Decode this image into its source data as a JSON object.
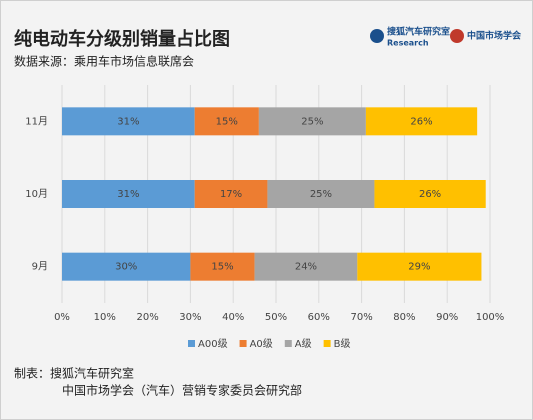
{
  "chart_data": {
    "type": "bar",
    "orientation": "horizontal",
    "stacked": true,
    "title": "纯电动车分级别销量占比图",
    "subtitle": "数据来源：乘用车市场信息联席会",
    "logos": [
      "搜狐汽车研究室",
      "Research",
      "中国市场学会"
    ],
    "footer": [
      "制表：搜狐汽车研究室",
      "中国市场学会（汽车）营销专家委员会研究部"
    ],
    "categories": [
      "11月",
      "10月",
      "9月"
    ],
    "series": [
      {
        "name": "A00级",
        "color": "#5b9bd5",
        "values": [
          31,
          31,
          30
        ],
        "value_labels": [
          "31%",
          "31%",
          "30%"
        ]
      },
      {
        "name": "A0级",
        "color": "#ed7d31",
        "values": [
          15,
          17,
          15
        ],
        "value_labels": [
          "15%",
          "17%",
          "15%"
        ]
      },
      {
        "name": "A级",
        "color": "#a5a5a5",
        "values": [
          25,
          25,
          24
        ],
        "value_labels": [
          "25%",
          "25%",
          "24%"
        ]
      },
      {
        "name": "B级",
        "color": "#ffc000",
        "values": [
          26,
          26,
          29
        ],
        "value_labels": [
          "26%",
          "26%",
          "29%"
        ]
      }
    ],
    "xlim": [
      0,
      100
    ],
    "xticks": [
      {
        "value": 0,
        "label": "0%"
      },
      {
        "value": 10,
        "label": "10%"
      },
      {
        "value": 20,
        "label": "20%"
      },
      {
        "value": 30,
        "label": "30%"
      },
      {
        "value": 40,
        "label": "40%"
      },
      {
        "value": 50,
        "label": "50%"
      },
      {
        "value": 60,
        "label": "60%"
      },
      {
        "value": 70,
        "label": "70%"
      },
      {
        "value": 80,
        "label": "80%"
      },
      {
        "value": 90,
        "label": "90%"
      },
      {
        "value": 100,
        "label": "100%"
      }
    ],
    "grid": true,
    "legend": "bottom"
  }
}
